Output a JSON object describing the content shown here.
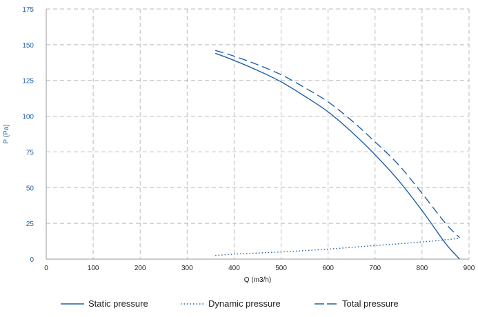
{
  "chart_data": {
    "type": "line",
    "title": "",
    "xlabel": "Q (m3/h)",
    "ylabel": "P (Pa)",
    "xlim": [
      0,
      900
    ],
    "ylim": [
      0,
      175
    ],
    "xticks": [
      0,
      100,
      200,
      300,
      400,
      500,
      600,
      700,
      800,
      900
    ],
    "yticks": [
      0,
      25,
      50,
      75,
      100,
      125,
      150,
      175
    ],
    "grid": true,
    "legend_position": "bottom",
    "series": [
      {
        "name": "Static pressure",
        "style": "solid",
        "color": "#1f5fa6",
        "x": [
          360,
          400,
          450,
          500,
          550,
          600,
          650,
          700,
          750,
          800,
          850,
          880
        ],
        "y": [
          144,
          139,
          132,
          124,
          114,
          103,
          89,
          73,
          55,
          34,
          11,
          0
        ]
      },
      {
        "name": "Dynamic pressure",
        "style": "dotted",
        "color": "#1f5fa6",
        "x": [
          360,
          400,
          500,
          600,
          700,
          800,
          880
        ],
        "y": [
          2.5,
          3.5,
          5.0,
          7.0,
          9.5,
          12.0,
          14.5
        ]
      },
      {
        "name": "Total pressure",
        "style": "dashed",
        "color": "#1f5fa6",
        "x": [
          360,
          400,
          450,
          500,
          550,
          600,
          650,
          700,
          750,
          800,
          850,
          880
        ],
        "y": [
          146,
          142,
          136,
          129,
          120,
          110,
          97,
          82,
          66,
          46,
          25,
          15
        ]
      }
    ]
  },
  "colors": {
    "axis_text": "#1f5fa6",
    "tick_text": "#222222",
    "grid": "#bbbbbb",
    "line": "#1f5fa6"
  }
}
